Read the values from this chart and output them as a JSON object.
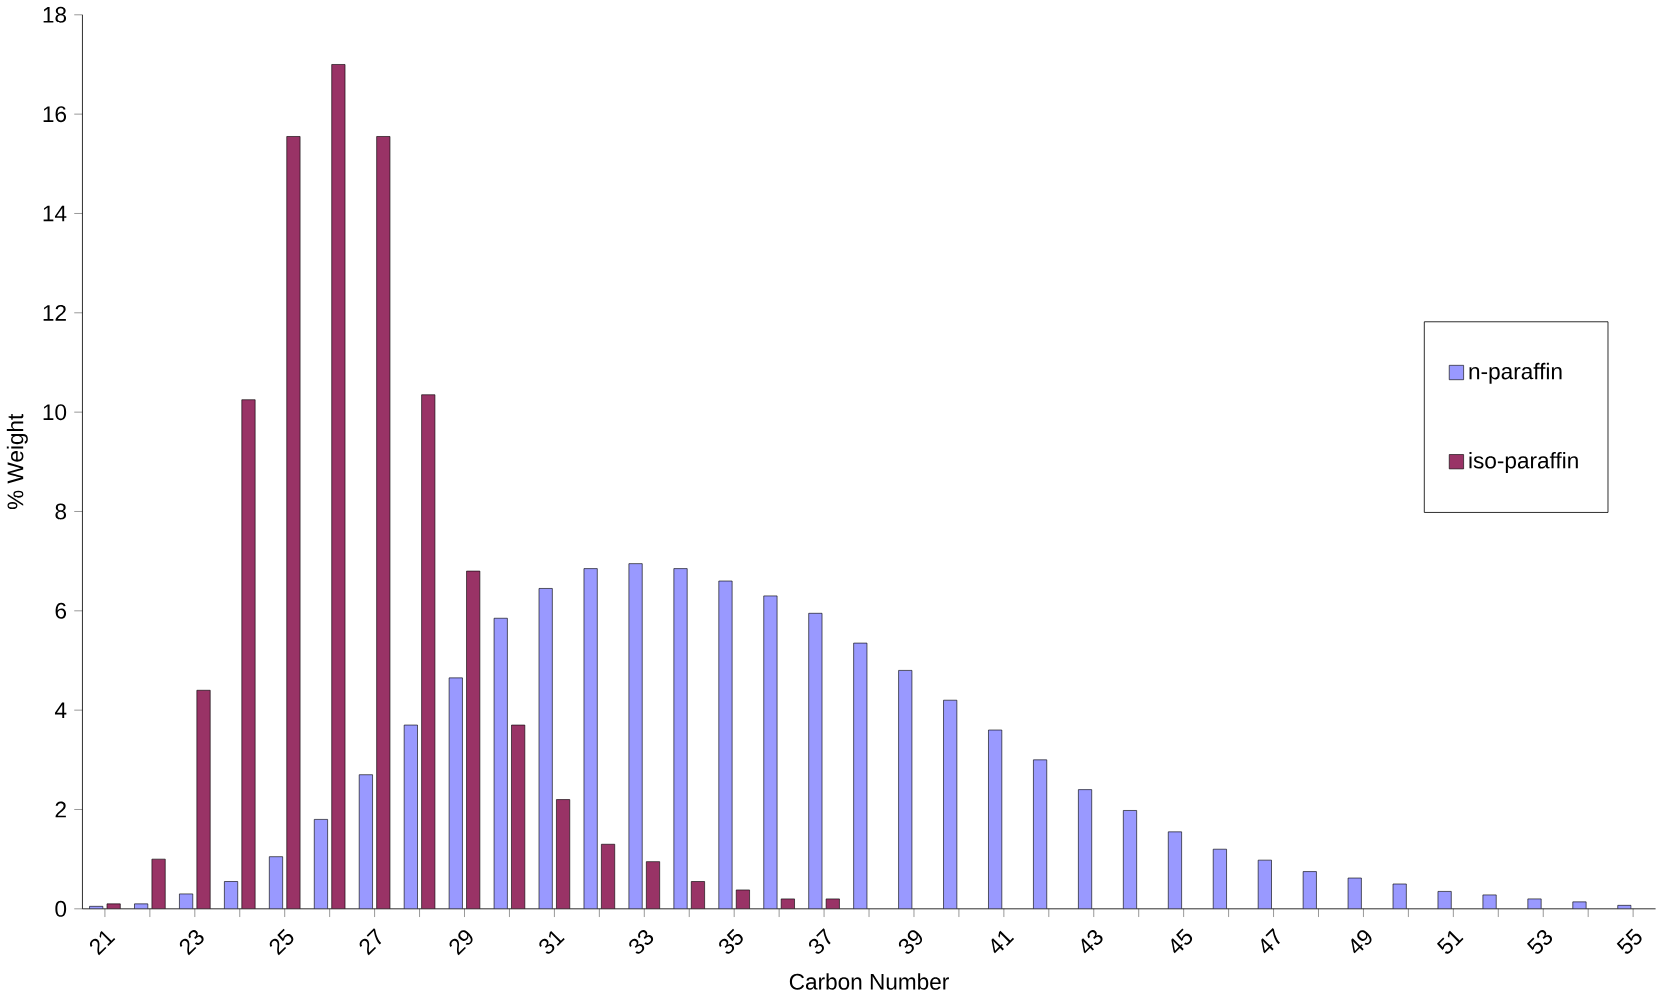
{
  "chart_data": {
    "type": "bar",
    "xlabel": "Carbon Number",
    "ylabel": "% Weight",
    "categories": [
      "21",
      null,
      "23",
      null,
      "25",
      null,
      "27",
      null,
      "29",
      null,
      "31",
      null,
      "33",
      null,
      "35",
      null,
      "37",
      null,
      "39",
      null,
      "41",
      null,
      "43",
      null,
      "45",
      null,
      "47",
      null,
      "49",
      null,
      "51",
      null,
      "53",
      null,
      "55"
    ],
    "series": [
      {
        "name": "n-paraffin",
        "color": "#9999ff",
        "values": [
          0.05,
          0.1,
          0.3,
          0.55,
          1.05,
          1.8,
          2.7,
          3.7,
          4.65,
          5.85,
          6.45,
          6.85,
          6.95,
          6.85,
          6.6,
          6.3,
          5.95,
          5.35,
          4.8,
          4.2,
          3.6,
          3.0,
          2.4,
          1.98,
          1.55,
          1.2,
          0.98,
          0.75,
          0.62,
          0.5,
          0.35,
          0.28,
          0.2,
          0.14,
          0.07
        ]
      },
      {
        "name": "iso-paraffin",
        "color": "#993366",
        "values": [
          0.1,
          1.0,
          4.4,
          10.25,
          15.55,
          17.0,
          15.55,
          10.35,
          6.8,
          3.7,
          2.2,
          1.3,
          0.95,
          0.55,
          0.38,
          0.2,
          0.2,
          null,
          null,
          null,
          null,
          null,
          null,
          null,
          null,
          null,
          null,
          null,
          null,
          null,
          null,
          null,
          null,
          null,
          null
        ]
      }
    ],
    "ylim": [
      0,
      18
    ],
    "yticks": [
      0,
      2,
      4,
      6,
      8,
      10,
      12,
      14,
      16,
      18
    ],
    "grid": false,
    "legend": "right"
  }
}
